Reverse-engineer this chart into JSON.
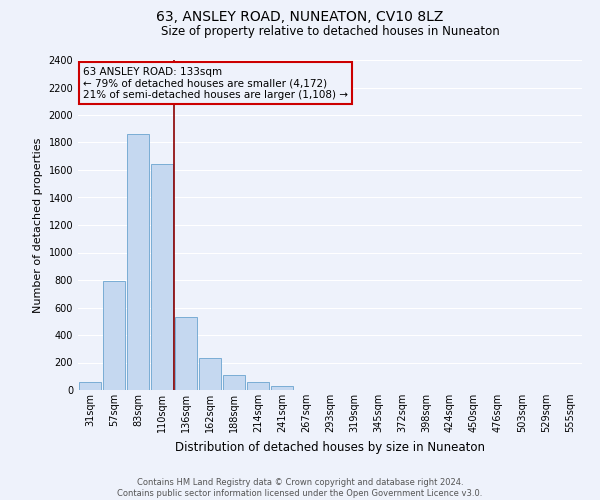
{
  "title": "63, ANSLEY ROAD, NUNEATON, CV10 8LZ",
  "subtitle": "Size of property relative to detached houses in Nuneaton",
  "xlabel": "Distribution of detached houses by size in Nuneaton",
  "ylabel": "Number of detached properties",
  "bar_labels": [
    "31sqm",
    "57sqm",
    "83sqm",
    "110sqm",
    "136sqm",
    "162sqm",
    "188sqm",
    "214sqm",
    "241sqm",
    "267sqm",
    "293sqm",
    "319sqm",
    "345sqm",
    "372sqm",
    "398sqm",
    "424sqm",
    "450sqm",
    "476sqm",
    "503sqm",
    "529sqm",
    "555sqm"
  ],
  "bar_values": [
    55,
    795,
    1865,
    1640,
    530,
    235,
    110,
    55,
    30,
    0,
    0,
    0,
    0,
    0,
    0,
    0,
    0,
    0,
    0,
    0,
    0
  ],
  "bar_color": "#c5d8f0",
  "bar_edge_color": "#7aadd4",
  "vline_color": "#8b0000",
  "ylim": [
    0,
    2400
  ],
  "yticks": [
    0,
    200,
    400,
    600,
    800,
    1000,
    1200,
    1400,
    1600,
    1800,
    2000,
    2200,
    2400
  ],
  "annotation_line1": "63 ANSLEY ROAD: 133sqm",
  "annotation_line2": "← 79% of detached houses are smaller (4,172)",
  "annotation_line3": "21% of semi-detached houses are larger (1,108) →",
  "annotation_box_color": "#cc0000",
  "footer_line1": "Contains HM Land Registry data © Crown copyright and database right 2024.",
  "footer_line2": "Contains public sector information licensed under the Open Government Licence v3.0.",
  "bg_color": "#eef2fb",
  "grid_color": "#ffffff",
  "title_fontsize": 10,
  "subtitle_fontsize": 8.5,
  "ylabel_fontsize": 8,
  "xlabel_fontsize": 8.5,
  "tick_fontsize": 7,
  "footer_fontsize": 6,
  "annot_fontsize": 7.5
}
